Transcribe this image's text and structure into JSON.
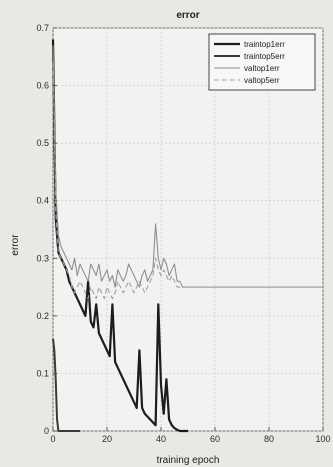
{
  "chart_data": {
    "type": "line",
    "title": "error",
    "xlabel": "training epoch",
    "ylabel": "error",
    "xlim": [
      0,
      100
    ],
    "ylim": [
      0,
      0.7
    ],
    "xticks": [
      "0",
      "20",
      "40",
      "60",
      "80",
      "100"
    ],
    "yticks": [
      "0",
      "0.1",
      "0.2",
      "0.3",
      "0.4",
      "0.5",
      "0.6",
      "0.7"
    ],
    "grid": true,
    "legend_position": "top-right",
    "series": [
      {
        "name": "traintop1err",
        "color": "#1c1c1c",
        "style": "solid",
        "x": [
          0,
          1,
          2,
          3,
          4,
          5,
          6,
          7,
          8,
          9,
          10,
          11,
          12,
          13,
          14,
          15,
          16,
          17,
          18,
          19,
          20,
          21,
          22,
          23,
          24,
          25,
          26,
          27,
          28,
          29,
          30,
          31,
          32,
          33,
          34,
          35,
          36,
          37,
          38,
          39,
          40,
          41,
          42,
          43,
          44,
          45,
          46,
          47,
          48,
          49,
          50
        ],
        "y": [
          0.68,
          0.37,
          0.31,
          0.3,
          0.29,
          0.28,
          0.26,
          0.25,
          0.24,
          0.23,
          0.22,
          0.21,
          0.2,
          0.26,
          0.19,
          0.18,
          0.22,
          0.17,
          0.16,
          0.15,
          0.14,
          0.13,
          0.22,
          0.12,
          0.11,
          0.1,
          0.09,
          0.08,
          0.07,
          0.06,
          0.05,
          0.04,
          0.14,
          0.04,
          0.03,
          0.025,
          0.02,
          0.015,
          0.01,
          0.22,
          0.08,
          0.03,
          0.09,
          0.02,
          0.01,
          0.005,
          0.002,
          0.0,
          0.0,
          0.0,
          0.0
        ]
      },
      {
        "name": "traintop5err",
        "color": "#3a3a3a",
        "style": "solid",
        "x": [
          0,
          0.5,
          1,
          1.5,
          2,
          3,
          4,
          5,
          6,
          7,
          8,
          9,
          10
        ],
        "y": [
          0.16,
          0.14,
          0.09,
          0.02,
          0.0,
          0.0,
          0.0,
          0.0,
          0.0,
          0.0,
          0.0,
          0.0,
          0.0
        ]
      },
      {
        "name": "valtop1err",
        "color": "#8e8e8e",
        "style": "solid",
        "x": [
          0,
          1,
          2,
          3,
          4,
          5,
          6,
          7,
          8,
          9,
          10,
          11,
          12,
          13,
          14,
          15,
          16,
          17,
          18,
          19,
          20,
          21,
          22,
          23,
          24,
          25,
          26,
          27,
          28,
          29,
          30,
          31,
          32,
          33,
          34,
          35,
          36,
          37,
          38,
          39,
          40,
          41,
          42,
          43,
          44,
          45,
          46,
          47,
          48,
          49,
          50,
          55,
          60,
          65,
          70,
          75,
          80,
          85,
          90,
          95,
          100
        ],
        "y": [
          0.67,
          0.42,
          0.34,
          0.32,
          0.31,
          0.3,
          0.29,
          0.28,
          0.3,
          0.27,
          0.29,
          0.28,
          0.27,
          0.26,
          0.29,
          0.28,
          0.27,
          0.29,
          0.26,
          0.27,
          0.28,
          0.26,
          0.27,
          0.25,
          0.28,
          0.27,
          0.26,
          0.27,
          0.29,
          0.28,
          0.27,
          0.26,
          0.25,
          0.27,
          0.28,
          0.26,
          0.27,
          0.28,
          0.36,
          0.3,
          0.28,
          0.3,
          0.29,
          0.27,
          0.28,
          0.29,
          0.26,
          0.26,
          0.25,
          0.25,
          0.25,
          0.25,
          0.25,
          0.25,
          0.25,
          0.25,
          0.25,
          0.25,
          0.25,
          0.25,
          0.25
        ]
      },
      {
        "name": "valtop5err",
        "color": "#a0a0a0",
        "style": "dashed",
        "x": [
          0,
          1,
          2,
          3,
          4,
          5,
          6,
          7,
          8,
          9,
          10,
          11,
          12,
          13,
          14,
          15,
          16,
          17,
          18,
          19,
          20,
          21,
          22,
          23,
          24,
          25,
          26,
          27,
          28,
          29,
          30,
          31,
          32,
          33,
          34,
          35,
          36,
          37,
          38,
          39,
          40,
          41,
          42,
          43,
          44,
          45,
          46,
          47,
          48,
          49,
          50,
          55,
          60,
          65,
          70,
          75,
          80,
          85,
          90,
          95,
          100
        ],
        "y": [
          0.64,
          0.38,
          0.31,
          0.3,
          0.29,
          0.28,
          0.27,
          0.25,
          0.24,
          0.25,
          0.26,
          0.25,
          0.24,
          0.23,
          0.25,
          0.24,
          0.23,
          0.25,
          0.24,
          0.23,
          0.25,
          0.24,
          0.23,
          0.24,
          0.26,
          0.25,
          0.24,
          0.25,
          0.26,
          0.25,
          0.24,
          0.25,
          0.26,
          0.25,
          0.24,
          0.25,
          0.26,
          0.27,
          0.3,
          0.28,
          0.27,
          0.28,
          0.27,
          0.26,
          0.27,
          0.26,
          0.25,
          0.25,
          0.25,
          0.25,
          0.25,
          0.25,
          0.25,
          0.25,
          0.25,
          0.25,
          0.25,
          0.25,
          0.25,
          0.25,
          0.25
        ]
      }
    ]
  }
}
